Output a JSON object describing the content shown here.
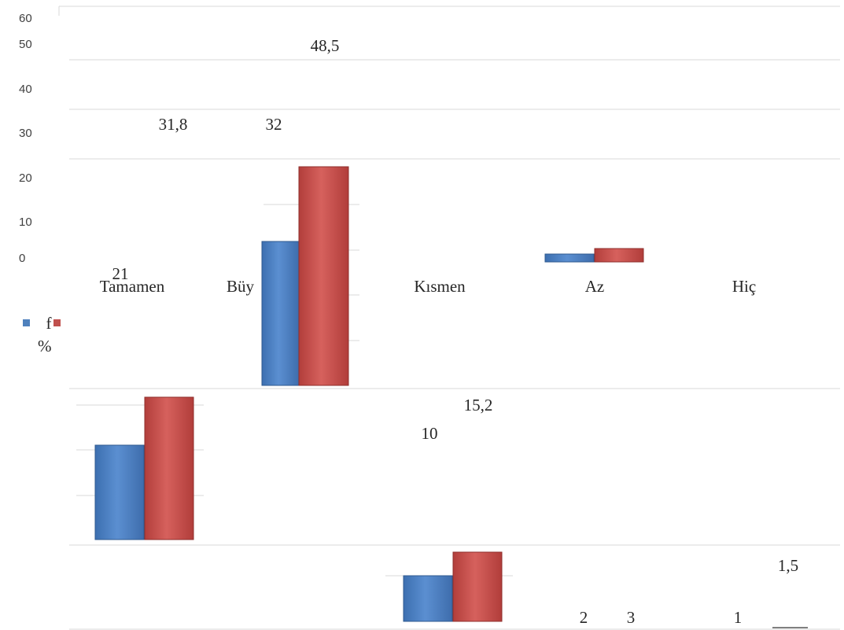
{
  "chart_data": {
    "type": "bar",
    "categories": [
      "Tamamen",
      "Büyük",
      "Kısmen",
      "Az",
      "Hiç"
    ],
    "category_labels_shown": [
      "Tamamen",
      "Büy",
      "Kısmen",
      "Az",
      "Hiç"
    ],
    "series": [
      {
        "name": "f",
        "values": [
          21,
          32,
          10,
          2,
          1
        ]
      },
      {
        "name": "%",
        "values": [
          31.8,
          48.5,
          15.2,
          3,
          1.5
        ]
      }
    ],
    "data_labels": [
      "21",
      "31,8",
      "32",
      "48,5",
      "10",
      "15,2",
      "2",
      "3",
      "1",
      "1,5"
    ],
    "y_ticks": [
      "0",
      "10",
      "20",
      "30",
      "40",
      "50",
      "60"
    ],
    "ylim": [
      0,
      60
    ],
    "legend": [
      "f",
      "%"
    ],
    "legend_position": "left",
    "grid": true,
    "colors": {
      "f": "#4f81bd",
      "%": "#c0504d"
    }
  }
}
